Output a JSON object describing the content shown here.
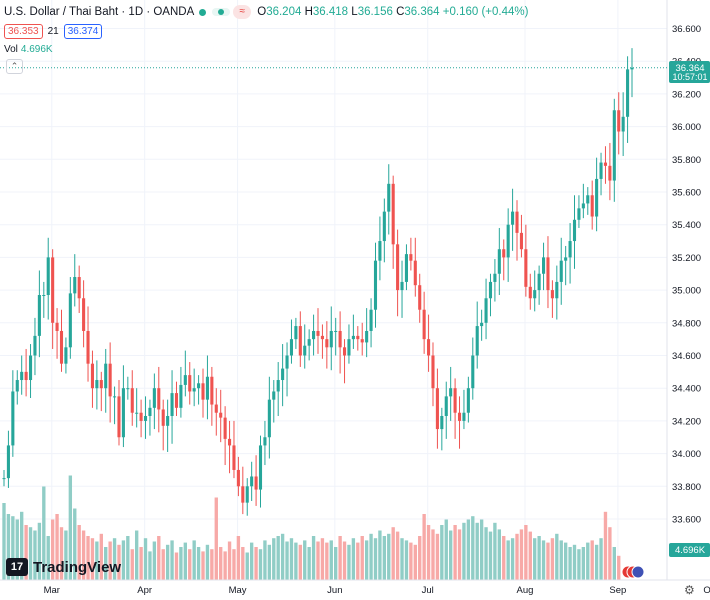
{
  "header": {
    "title": "U.S. Dollar / Thai Baht · 1D · OANDA",
    "o_label": "O",
    "o": "36.204",
    "h_label": "H",
    "h": "36.418",
    "l_label": "L",
    "l": "36.156",
    "c_label": "C",
    "c": "36.364",
    "change": "+0.160 (+0.44%)",
    "sell_price": "36.353",
    "spread": "21",
    "buy_price": "36.374",
    "vol_label": "Vol",
    "vol_value": "4.696K"
  },
  "last_price_tag": {
    "price": "36.364",
    "countdown": "10:57:01"
  },
  "volume_tag": "4.696K",
  "logo_text": "TradingView",
  "colors": {
    "up": "#26a69a",
    "down": "#ef5350",
    "vol_up": "#90cdc6",
    "vol_down": "#f7a9a7",
    "grid": "#f0f3fa",
    "text": "#131722"
  },
  "chart_data": {
    "type": "candlestick",
    "title": "U.S. Dollar / Thai Baht · 1D · OANDA",
    "ylim": [
      33.5,
      36.7
    ],
    "yticks": [
      "36.600",
      "36.400",
      "36.200",
      "36.000",
      "35.800",
      "35.600",
      "35.400",
      "35.200",
      "35.000",
      "34.800",
      "34.600",
      "34.400",
      "34.200",
      "34.000",
      "33.800",
      "33.600"
    ],
    "xticks": [
      {
        "label": "Mar",
        "index": 9
      },
      {
        "label": "Apr",
        "index": 30
      },
      {
        "label": "May",
        "index": 51
      },
      {
        "label": "Jun",
        "index": 73
      },
      {
        "label": "Jul",
        "index": 94
      },
      {
        "label": "Aug",
        "index": 116
      },
      {
        "label": "Sep",
        "index": 137
      },
      {
        "label": "Oct",
        "index": 158
      }
    ],
    "ohlc_o": [
      33.85,
      33.85,
      34.05,
      34.38,
      34.45,
      34.5,
      34.45,
      34.6,
      34.72,
      34.97,
      34.97,
      35.2,
      34.8,
      34.75,
      34.55,
      34.65,
      34.98,
      35.08,
      34.95,
      34.75,
      34.55,
      34.4,
      34.45,
      34.4,
      34.55,
      34.35,
      34.35,
      34.1,
      34.4,
      34.4,
      34.25,
      34.25,
      34.2,
      34.23,
      34.28,
      34.4,
      34.27,
      34.17,
      34.23,
      34.37,
      34.28,
      34.42,
      34.48,
      34.38,
      34.4,
      34.43,
      34.33,
      34.47,
      34.3,
      34.25,
      34.22,
      34.09,
      34.05,
      33.9,
      33.8,
      33.7,
      33.8,
      33.86,
      33.78,
      34.05,
      34.1,
      34.33,
      34.38,
      34.45,
      34.52,
      34.6,
      34.7,
      34.78,
      34.6,
      34.66,
      34.7,
      34.75,
      34.72,
      34.7,
      34.65,
      34.75,
      34.75,
      34.65,
      34.6,
      34.7,
      34.72,
      34.7,
      34.68,
      34.75,
      34.88,
      35.18,
      35.3,
      35.48,
      35.65,
      35.28,
      35.0,
      35.05,
      35.22,
      35.18,
      35.03,
      34.88,
      34.7,
      34.6,
      34.4,
      34.15,
      34.23,
      34.35,
      34.4,
      34.25,
      34.2,
      34.25,
      34.4,
      34.6,
      34.78,
      34.8,
      34.95,
      35.05,
      35.1,
      35.25,
      35.2,
      35.4,
      35.48,
      35.35,
      35.25,
      35.02,
      34.95,
      35.0,
      35.1,
      35.2,
      35.0,
      34.95,
      35.05,
      35.18,
      35.2,
      35.3,
      35.43,
      35.5,
      35.53,
      35.58,
      35.45,
      35.68,
      35.78,
      35.76,
      35.67,
      36.1,
      35.97,
      36.06,
      36.35
    ],
    "ohlc_c": [
      33.85,
      34.05,
      34.38,
      34.45,
      34.5,
      34.45,
      34.6,
      34.72,
      34.97,
      34.97,
      35.2,
      34.8,
      34.75,
      34.55,
      34.65,
      34.98,
      35.08,
      34.95,
      34.75,
      34.55,
      34.4,
      34.45,
      34.4,
      34.55,
      34.35,
      34.35,
      34.1,
      34.4,
      34.4,
      34.25,
      34.25,
      34.2,
      34.23,
      34.28,
      34.4,
      34.27,
      34.17,
      34.23,
      34.37,
      34.28,
      34.42,
      34.48,
      34.38,
      34.4,
      34.43,
      34.33,
      34.47,
      34.3,
      34.25,
      34.22,
      34.09,
      34.05,
      33.9,
      33.8,
      33.7,
      33.8,
      33.86,
      33.78,
      34.05,
      34.1,
      34.33,
      34.38,
      34.45,
      34.52,
      34.6,
      34.7,
      34.78,
      34.6,
      34.66,
      34.7,
      34.75,
      34.72,
      34.7,
      34.65,
      34.75,
      34.75,
      34.65,
      34.6,
      34.7,
      34.72,
      34.7,
      34.68,
      34.75,
      34.88,
      35.18,
      35.3,
      35.48,
      35.65,
      35.28,
      35.0,
      35.05,
      35.22,
      35.18,
      35.03,
      34.88,
      34.7,
      34.6,
      34.4,
      34.15,
      34.23,
      34.35,
      34.4,
      34.25,
      34.2,
      34.25,
      34.4,
      34.6,
      34.78,
      34.8,
      34.95,
      35.05,
      35.1,
      35.25,
      35.2,
      35.4,
      35.48,
      35.35,
      35.25,
      35.02,
      34.95,
      35.0,
      35.1,
      35.2,
      35.0,
      34.95,
      35.05,
      35.18,
      35.2,
      35.3,
      35.43,
      35.5,
      35.53,
      35.58,
      35.45,
      35.68,
      35.78,
      35.76,
      35.67,
      36.1,
      35.97,
      36.06,
      36.35,
      36.36
    ],
    "volume": [
      70,
      60,
      58,
      55,
      62,
      50,
      48,
      45,
      52,
      85,
      40,
      55,
      60,
      48,
      45,
      95,
      65,
      50,
      45,
      40,
      38,
      35,
      42,
      30,
      35,
      38,
      32,
      36,
      40,
      28,
      45,
      30,
      38,
      26,
      35,
      40,
      28,
      32,
      36,
      25,
      30,
      34,
      28,
      36,
      30,
      26,
      32,
      28,
      75,
      30,
      26,
      35,
      28,
      40,
      30,
      25,
      34,
      30,
      28,
      36,
      32,
      38,
      40,
      42,
      35,
      38,
      34,
      32,
      36,
      30,
      40,
      35,
      38,
      34,
      36,
      30,
      40,
      35,
      32,
      38,
      34,
      40,
      36,
      42,
      38,
      45,
      40,
      42,
      48,
      44,
      38,
      36,
      34,
      32,
      40,
      60,
      50,
      46,
      42,
      50,
      55,
      45,
      50,
      46,
      52,
      55,
      58,
      52,
      55,
      48,
      44,
      52,
      46,
      40,
      36,
      38,
      42,
      46,
      50,
      44,
      38,
      40,
      36,
      34,
      38,
      42,
      36,
      34,
      30,
      32,
      28,
      30,
      34,
      36,
      32,
      38,
      62,
      48,
      30,
      22
    ]
  }
}
